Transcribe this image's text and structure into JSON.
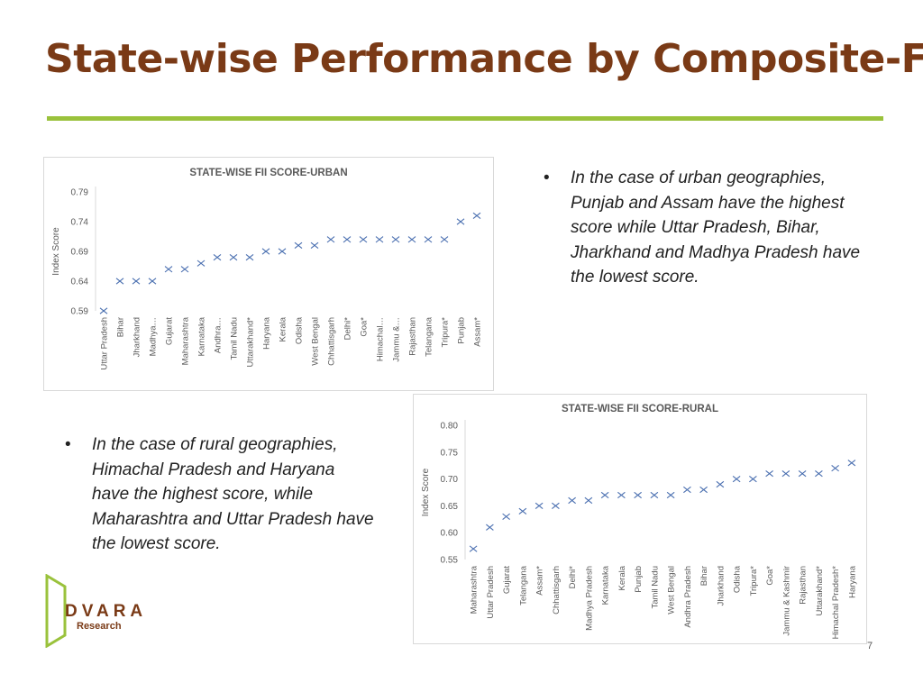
{
  "slide": {
    "title": "State-wise Performance by Composite-FII",
    "page_number": "7",
    "accent_color": "#9ac23c",
    "title_color": "#7a3a16"
  },
  "bullets": {
    "urban": "In the case of urban geographies, Punjab and Assam have the highest score while Uttar Pradesh, Bihar, Jharkhand and Madhya Pradesh have the lowest score.",
    "rural": "In the case of rural geographies, Himachal Pradesh and Haryana have the highest score, while Maharashtra and Uttar Pradesh have the lowest score."
  },
  "logo": {
    "name": "DVARA",
    "sub": "Research"
  },
  "chart_data": [
    {
      "type": "scatter",
      "title": "STATE-WISE FII SCORE-URBAN",
      "xlabel": "",
      "ylabel": "Index Score",
      "ylim": [
        0.59,
        0.79
      ],
      "yticks": [
        "0.79",
        "0.74",
        "0.69",
        "0.64",
        "0.59"
      ],
      "marker": "x",
      "color": "#4a6fb0",
      "grid": false,
      "categories": [
        "Uttar Pradesh",
        "Bihar",
        "Jharkhand",
        "Madhya…",
        "Gujarat",
        "Maharashtra",
        "Karnataka",
        "Andhra…",
        "Tamil Nadu",
        "Uttarakhand*",
        "Haryana",
        "Kerala",
        "Odisha",
        "West Bengal",
        "Chhattisgarh",
        "Delhi*",
        "Goa*",
        "Himachal…",
        "Jammu &…",
        "Rajasthan",
        "Telangana",
        "Tripura*",
        "Punjab",
        "Assam*"
      ],
      "values": [
        0.59,
        0.64,
        0.64,
        0.64,
        0.66,
        0.66,
        0.67,
        0.68,
        0.68,
        0.68,
        0.69,
        0.69,
        0.7,
        0.7,
        0.71,
        0.71,
        0.71,
        0.71,
        0.71,
        0.71,
        0.71,
        0.71,
        0.74,
        0.75
      ]
    },
    {
      "type": "scatter",
      "title": "STATE-WISE FII SCORE-RURAL",
      "xlabel": "",
      "ylabel": "Index Score",
      "ylim": [
        0.55,
        0.8
      ],
      "yticks": [
        "0.80",
        "0.75",
        "0.70",
        "0.65",
        "0.60",
        "0.55"
      ],
      "marker": "x",
      "color": "#4a6fb0",
      "grid": false,
      "categories": [
        "Maharashtra",
        "Uttar Pradesh",
        "Gujarat",
        "Telangana",
        "Assam*",
        "Chhattisgarh",
        "Delhi*",
        "Madhya Pradesh",
        "Karnataka",
        "Kerala",
        "Punjab",
        "Tamil Nadu",
        "West Bengal",
        "Andhra Pradesh",
        "Bihar",
        "Jharkhand",
        "Odisha",
        "Tripura*",
        "Goa*",
        "Jammu & Kashmir",
        "Rajasthan",
        "Uttarakhand*",
        "Himachal Pradesh*",
        "Haryana"
      ],
      "values": [
        0.57,
        0.61,
        0.63,
        0.64,
        0.65,
        0.65,
        0.66,
        0.66,
        0.67,
        0.67,
        0.67,
        0.67,
        0.67,
        0.68,
        0.68,
        0.69,
        0.7,
        0.7,
        0.71,
        0.71,
        0.71,
        0.71,
        0.72,
        0.73
      ]
    }
  ]
}
